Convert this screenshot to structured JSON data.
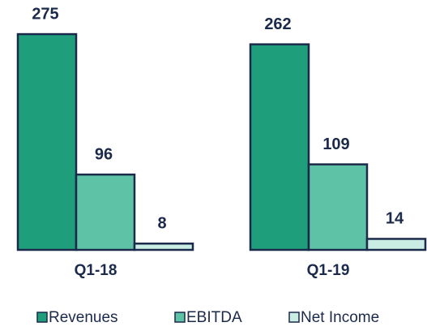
{
  "chart_data": {
    "type": "bar",
    "categories": [
      "Q1-18",
      "Q1-19"
    ],
    "series": [
      {
        "name": "Revenues",
        "color": "#1f9e7c",
        "values": [
          275,
          262
        ]
      },
      {
        "name": "EBITDA",
        "color": "#5ec2a6",
        "values": [
          96,
          109
        ]
      },
      {
        "name": "Net Income",
        "color": "#c9ede2",
        "values": [
          8,
          14
        ]
      }
    ]
  }
}
